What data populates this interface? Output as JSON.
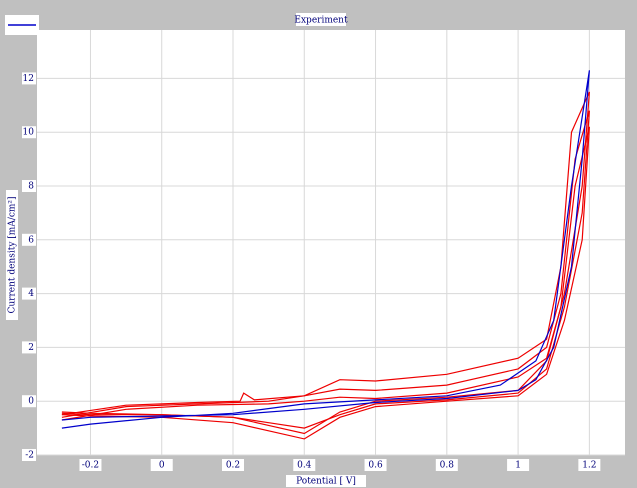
{
  "chart_data": {
    "type": "line",
    "title": "Experiment",
    "x_label": "Potential [ V]",
    "y_label": "Current density [mA/cm²]",
    "xlim": [
      -0.35,
      1.3
    ],
    "ylim": [
      -2,
      13.8
    ],
    "xticks": [
      -0.2,
      0,
      0.2,
      0.4,
      0.6,
      0.8,
      1,
      1.2
    ],
    "yticks": [
      -2,
      0,
      2,
      4,
      6,
      8,
      10,
      12
    ],
    "grid": true,
    "legend": "top-left",
    "series": [
      {
        "color": "#0000cc",
        "x": [
          -0.28,
          -0.2,
          0,
          0.2,
          0.4,
          0.6,
          0.8,
          0.95,
          1.05,
          1.1,
          1.15,
          1.2,
          1.18,
          1.15,
          1.1,
          1.05,
          1.0,
          0.8,
          0.6,
          0.4,
          0.2,
          0,
          -0.2,
          -0.28
        ],
        "values": [
          -1.0,
          -0.85,
          -0.6,
          -0.45,
          -0.1,
          0.05,
          0.2,
          0.6,
          1.5,
          3,
          8,
          12.3,
          9,
          5,
          2,
          0.8,
          0.4,
          0.1,
          -0.05,
          -0.3,
          -0.5,
          -0.55,
          -0.6,
          -0.7
        ]
      },
      {
        "color": "#ee0000",
        "x": [
          -0.28,
          -0.1,
          0.1,
          0.22,
          0.23,
          0.26,
          0.4,
          0.5,
          0.6,
          0.8,
          1.0,
          1.08,
          1.12,
          1.15,
          1.2,
          1.18,
          1.13,
          1.08,
          1.0,
          0.8,
          0.6,
          0.5,
          0.4,
          0.3,
          0.2,
          0,
          -0.2,
          -0.28
        ],
        "values": [
          -0.5,
          -0.15,
          -0.05,
          0.0,
          0.3,
          0.05,
          0.2,
          0.8,
          0.75,
          1.0,
          1.6,
          2.3,
          5,
          10,
          11.5,
          8,
          4,
          1.5,
          0.4,
          0.15,
          0.0,
          -0.4,
          -1.2,
          -0.9,
          -0.6,
          -0.5,
          -0.45,
          -0.4
        ]
      },
      {
        "color": "#ee0000",
        "x": [
          -0.28,
          -0.1,
          0.1,
          0.3,
          0.4,
          0.5,
          0.6,
          0.8,
          1.0,
          1.08,
          1.12,
          1.16,
          1.2,
          1.18,
          1.13,
          1.08,
          1.0,
          0.8,
          0.6,
          0.5,
          0.4,
          0.3,
          0.2,
          0,
          -0.2,
          -0.28
        ],
        "values": [
          -0.6,
          -0.2,
          -0.1,
          0.0,
          0.2,
          0.45,
          0.4,
          0.6,
          1.2,
          2.0,
          4,
          9,
          10.8,
          7,
          3.5,
          1.2,
          0.3,
          0.05,
          -0.1,
          -0.5,
          -1.0,
          -0.8,
          -0.6,
          -0.5,
          -0.5,
          -0.45
        ]
      },
      {
        "color": "#ee0000",
        "x": [
          -0.28,
          -0.1,
          0.1,
          0.3,
          0.4,
          0.5,
          0.6,
          0.8,
          1.0,
          1.08,
          1.12,
          1.16,
          1.2,
          1.18,
          1.13,
          1.08,
          1.0,
          0.8,
          0.6,
          0.5,
          0.4,
          0.3,
          0.2,
          0,
          -0.2,
          -0.28
        ],
        "values": [
          -0.7,
          -0.3,
          -0.15,
          -0.1,
          0.0,
          0.15,
          0.1,
          0.3,
          0.9,
          1.6,
          3.5,
          8,
          10.2,
          6,
          3,
          1.0,
          0.2,
          0.0,
          -0.2,
          -0.6,
          -1.4,
          -1.1,
          -0.8,
          -0.6,
          -0.55,
          -0.5
        ]
      }
    ]
  }
}
